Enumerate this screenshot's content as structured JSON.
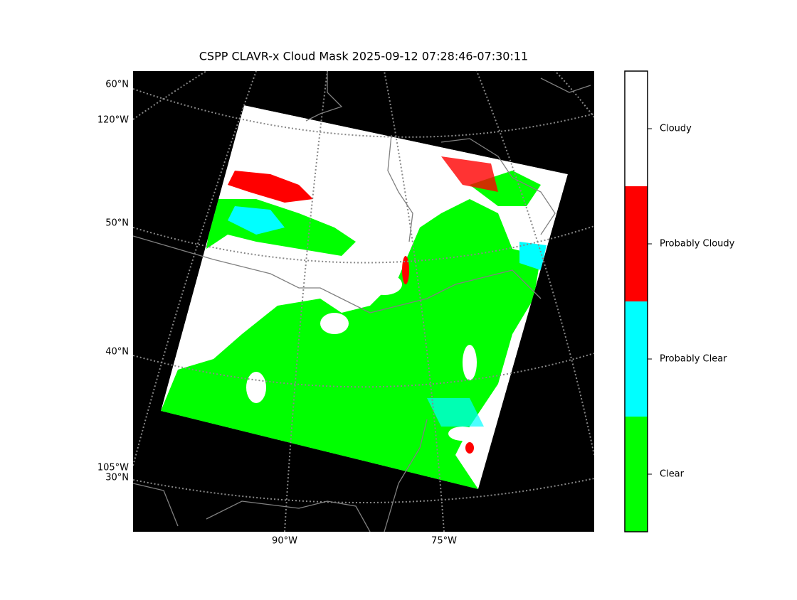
{
  "title": "CSPP CLAVR-x Cloud Mask 2025-09-12 07:28:46-07:30:11",
  "map": {
    "lat_labels": [
      "60°N",
      "50°N",
      "40°N",
      "30°N"
    ],
    "lon_labels_left": [
      "120°W",
      "105°W"
    ],
    "lon_labels_bottom": [
      "90°W",
      "75°W"
    ]
  },
  "colorbar": {
    "categories": [
      "Clear",
      "Probably Clear",
      "Probably Cloudy",
      "Cloudy"
    ],
    "colors": [
      "#00ff00",
      "#00ffff",
      "#ff0000",
      "#ffffff"
    ]
  }
}
